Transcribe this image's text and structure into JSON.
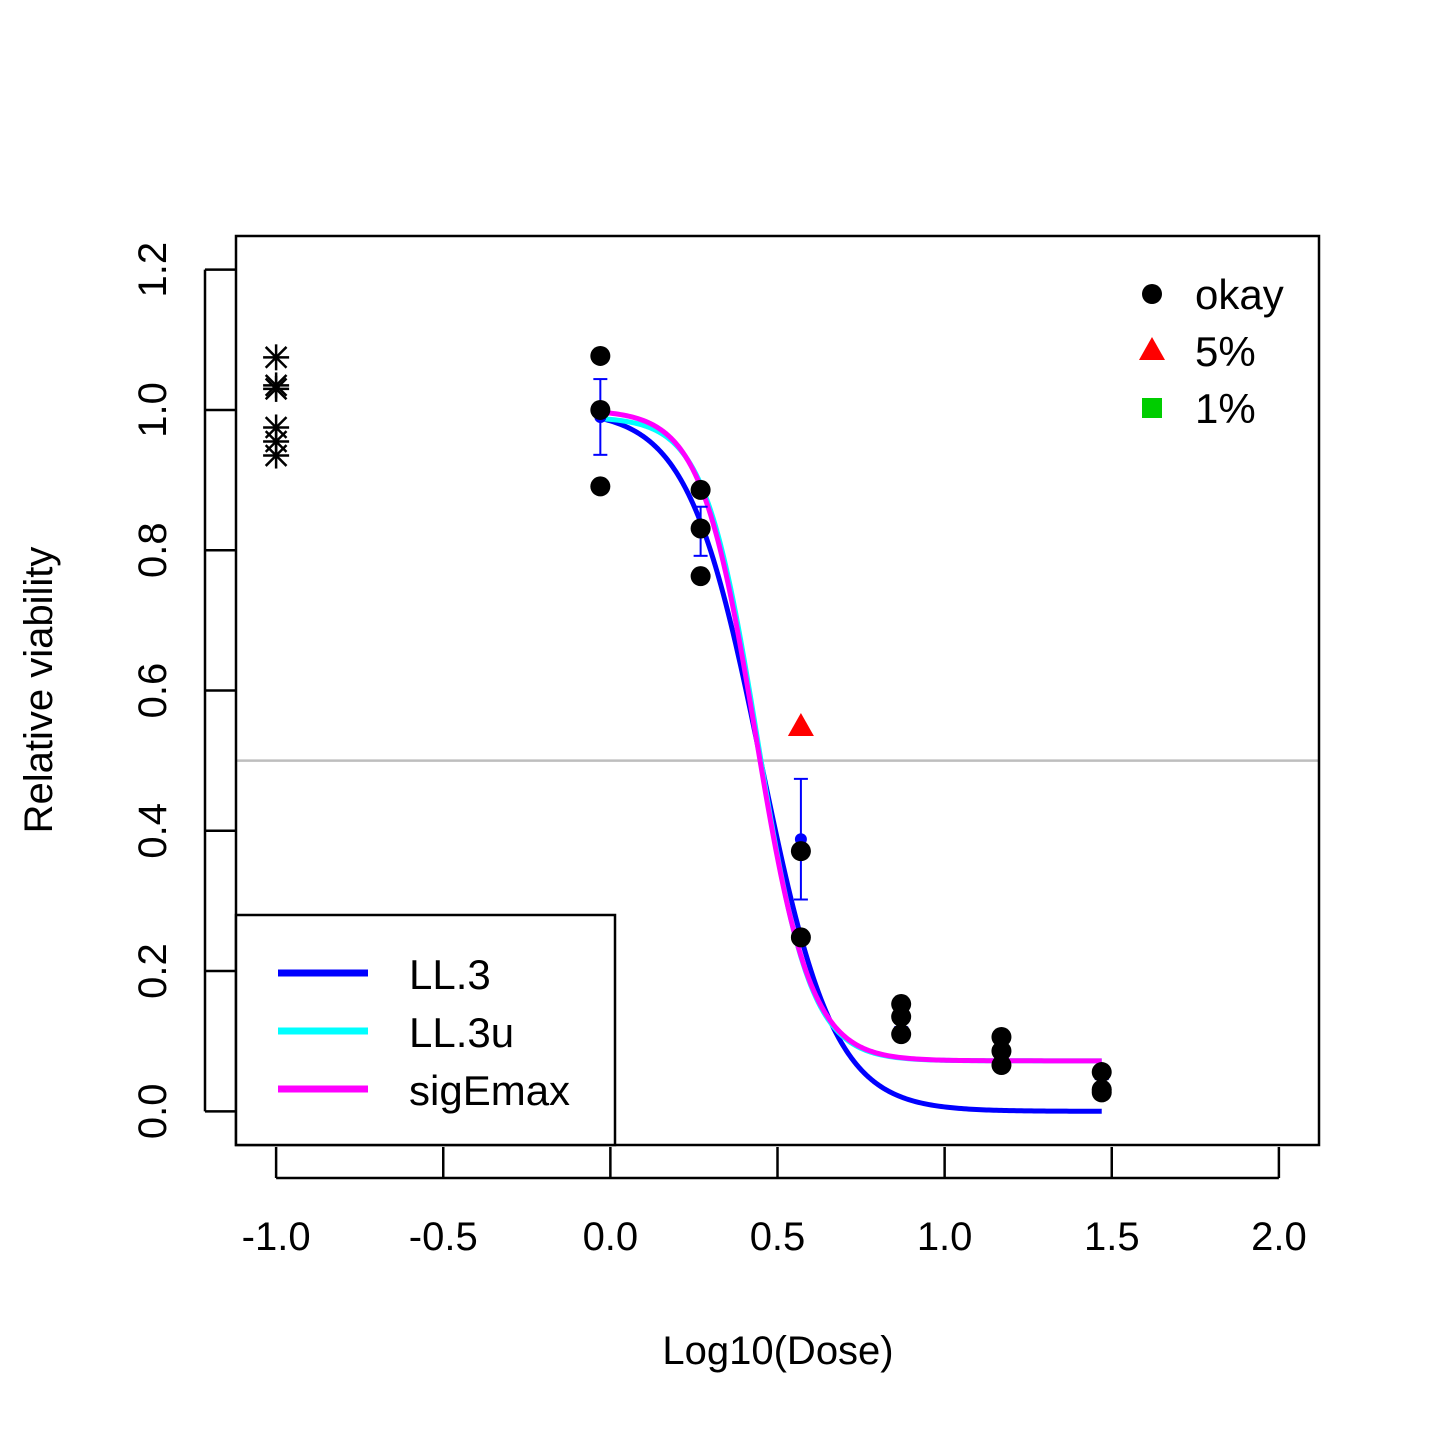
{
  "chart_data": {
    "type": "scatter",
    "title": "",
    "xlabel": "Log10(Dose)",
    "ylabel": "Relative viability",
    "xlim": [
      -1.12,
      2.12
    ],
    "ylim": [
      -0.048,
      1.248
    ],
    "x_ticks": [
      -1.0,
      -0.5,
      0.0,
      0.5,
      1.0,
      1.5,
      2.0
    ],
    "x_tick_labels": [
      "-1.0",
      "-0.5",
      "0.0",
      "0.5",
      "1.0",
      "1.5",
      "2.0"
    ],
    "y_ticks": [
      0.0,
      0.2,
      0.4,
      0.6,
      0.8,
      1.0,
      1.2
    ],
    "y_tick_labels": [
      "0.0",
      "0.2",
      "0.4",
      "0.6",
      "0.8",
      "1.0",
      "1.2"
    ],
    "grid": false,
    "reference_line": {
      "y": 0.5,
      "color": "#bebebe"
    },
    "controls": {
      "x": -1.0,
      "values": [
        0.935,
        0.955,
        0.975,
        1.03,
        1.035,
        1.075
      ],
      "marker": "asterisk"
    },
    "points": [
      {
        "x": -0.03,
        "y": 1.077,
        "status": "okay"
      },
      {
        "x": -0.03,
        "y": 1.0,
        "status": "okay"
      },
      {
        "x": -0.03,
        "y": 0.891,
        "status": "okay"
      },
      {
        "x": 0.27,
        "y": 0.886,
        "status": "okay"
      },
      {
        "x": 0.27,
        "y": 0.831,
        "status": "okay"
      },
      {
        "x": 0.27,
        "y": 0.763,
        "status": "okay"
      },
      {
        "x": 0.57,
        "y": 0.548,
        "status": "5%"
      },
      {
        "x": 0.57,
        "y": 0.371,
        "status": "okay"
      },
      {
        "x": 0.57,
        "y": 0.248,
        "status": "okay"
      },
      {
        "x": 0.87,
        "y": 0.153,
        "status": "okay"
      },
      {
        "x": 0.87,
        "y": 0.135,
        "status": "okay"
      },
      {
        "x": 0.87,
        "y": 0.11,
        "status": "okay"
      },
      {
        "x": 1.17,
        "y": 0.106,
        "status": "okay"
      },
      {
        "x": 1.17,
        "y": 0.086,
        "status": "okay"
      },
      {
        "x": 1.17,
        "y": 0.066,
        "status": "okay"
      },
      {
        "x": 1.47,
        "y": 0.056,
        "status": "okay"
      },
      {
        "x": 1.47,
        "y": 0.031,
        "status": "okay"
      },
      {
        "x": 1.47,
        "y": 0.027,
        "status": "okay"
      }
    ],
    "means": [
      {
        "x": -0.03,
        "mean": 0.99,
        "lower": 0.936,
        "upper": 1.044
      },
      {
        "x": 0.27,
        "mean": 0.827,
        "lower": 0.792,
        "upper": 0.862
      },
      {
        "x": 0.57,
        "mean": 0.388,
        "lower": 0.302,
        "upper": 0.474
      },
      {
        "x": 0.87,
        "mean": 0.133,
        "lower": 0.12,
        "upper": 0.146
      },
      {
        "x": 1.17,
        "mean": 0.086,
        "lower": 0.074,
        "upper": 0.098
      },
      {
        "x": 1.47,
        "mean": 0.038,
        "lower": 0.03,
        "upper": 0.046
      }
    ],
    "series": [
      {
        "name": "LL.3",
        "color": "#0000ff",
        "model": "ll3",
        "params": {
          "lower": 0.0,
          "upper": 1.0,
          "ec50_log": 0.45,
          "slope": 4.0
        },
        "x_range": [
          -0.03,
          1.47
        ]
      },
      {
        "name": "LL.3u",
        "color": "#00ffff",
        "model": "ll3u",
        "params": {
          "lower": 0.072,
          "upper": 0.99,
          "ec50_log": 0.44,
          "slope": 5.5
        },
        "x_range": [
          -0.03,
          1.47
        ]
      },
      {
        "name": "sigEmax",
        "color": "#ff00ff",
        "model": "sigemax",
        "params": {
          "lower": 0.072,
          "upper": 1.0,
          "ec50_log": 0.435,
          "slope": 5.3
        },
        "x_range": [
          -0.03,
          1.47
        ]
      }
    ],
    "legend_status": [
      {
        "label": "okay",
        "color": "#000000",
        "marker": "circle"
      },
      {
        "label": "5%",
        "color": "#ff0000",
        "marker": "triangle"
      },
      {
        "label": "1%",
        "color": "#00cd00",
        "marker": "square"
      }
    ],
    "legend_status_position": "top-right",
    "legend_models_position": "bottom-left",
    "errorbar_color": "#0000ff"
  }
}
